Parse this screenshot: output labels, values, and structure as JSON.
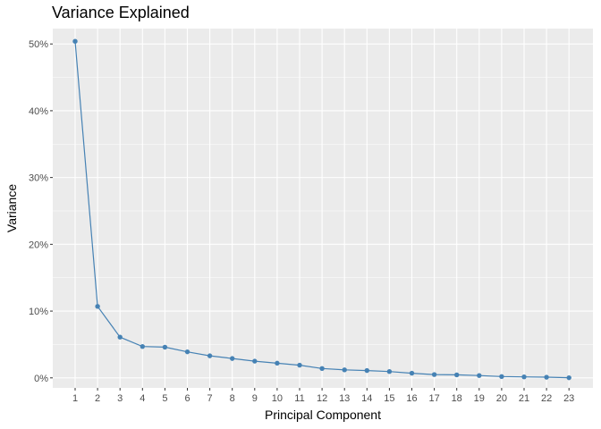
{
  "chart_data": {
    "type": "line",
    "title": "Variance Explained",
    "xlabel": "Principal Component",
    "ylabel": "Variance",
    "x": [
      "1",
      "2",
      "3",
      "4",
      "5",
      "6",
      "7",
      "8",
      "9",
      "10",
      "11",
      "12",
      "13",
      "14",
      "15",
      "16",
      "17",
      "18",
      "19",
      "20",
      "21",
      "22",
      "23"
    ],
    "series": [
      {
        "values": [
          50.4,
          10.7,
          6.1,
          4.7,
          4.6,
          3.9,
          3.3,
          2.9,
          2.5,
          2.2,
          1.9,
          1.4,
          1.2,
          1.1,
          0.95,
          0.7,
          0.5,
          0.45,
          0.35,
          0.2,
          0.15,
          0.1,
          0.02
        ]
      }
    ],
    "y_ticks": [
      "0%",
      "10%",
      "20%",
      "30%",
      "40%",
      "50%"
    ],
    "ylim": [
      -1.5,
      52.3
    ],
    "grid": true,
    "colors": {
      "line": "#4682B4",
      "panel": "#EBEBEB",
      "grid": "#FFFFFF"
    }
  }
}
